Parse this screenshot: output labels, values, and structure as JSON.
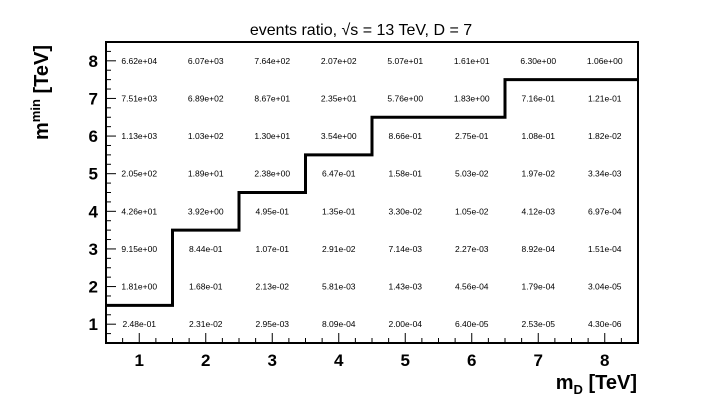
{
  "chart_data": {
    "type": "table",
    "title": "events ratio, √s = 13 TeV, D = 7",
    "xlabel": "m_D [TeV]",
    "ylabel": "m^min [TeV]",
    "xlabel_parts": {
      "base": "m",
      "sub": "D",
      "rest": " [TeV]"
    },
    "ylabel_parts": {
      "base": "m",
      "sup": "min",
      "rest": " [TeV]"
    },
    "x_ticks": [
      "1",
      "2",
      "3",
      "4",
      "5",
      "6",
      "7",
      "8"
    ],
    "y_ticks": [
      "1",
      "2",
      "3",
      "4",
      "5",
      "6",
      "7",
      "8"
    ],
    "xlim": [
      0.5,
      8.5
    ],
    "ylim": [
      0.5,
      8.5
    ],
    "rows": [
      {
        "y": 8,
        "values": [
          "6.62e+04",
          "6.07e+03",
          "7.64e+02",
          "2.07e+02",
          "5.07e+01",
          "1.61e+01",
          "6.30e+00",
          "1.06e+00"
        ]
      },
      {
        "y": 7,
        "values": [
          "7.51e+03",
          "6.89e+02",
          "8.67e+01",
          "2.35e+01",
          "5.76e+00",
          "1.83e+00",
          "7.16e-01",
          "1.21e-01"
        ]
      },
      {
        "y": 6,
        "values": [
          "1.13e+03",
          "1.03e+02",
          "1.30e+01",
          "3.54e+00",
          "8.66e-01",
          "2.75e-01",
          "1.08e-01",
          "1.82e-02"
        ]
      },
      {
        "y": 5,
        "values": [
          "2.05e+02",
          "1.89e+01",
          "2.38e+00",
          "6.47e-01",
          "1.58e-01",
          "5.03e-02",
          "1.97e-02",
          "3.34e-03"
        ]
      },
      {
        "y": 4,
        "values": [
          "4.26e+01",
          "3.92e+00",
          "4.95e-01",
          "1.35e-01",
          "3.30e-02",
          "1.05e-02",
          "4.12e-03",
          "6.97e-04"
        ]
      },
      {
        "y": 3,
        "values": [
          "9.15e+00",
          "8.44e-01",
          "1.07e-01",
          "2.91e-02",
          "7.14e-03",
          "2.27e-03",
          "8.92e-04",
          "1.51e-04"
        ]
      },
      {
        "y": 2,
        "values": [
          "1.81e+00",
          "1.68e-01",
          "2.13e-02",
          "5.81e-03",
          "1.43e-03",
          "4.56e-04",
          "1.79e-04",
          "3.04e-05"
        ]
      },
      {
        "y": 1,
        "values": [
          "2.48e-01",
          "2.31e-02",
          "2.95e-03",
          "8.09e-04",
          "2.00e-04",
          "6.40e-05",
          "2.53e-05",
          "4.30e-06"
        ]
      }
    ],
    "boundary": [
      [
        0.5,
        1.5
      ],
      [
        1.5,
        1.5
      ],
      [
        1.5,
        3.5
      ],
      [
        2.5,
        3.5
      ],
      [
        2.5,
        4.5
      ],
      [
        3.5,
        4.5
      ],
      [
        3.5,
        5.5
      ],
      [
        4.5,
        5.5
      ],
      [
        4.5,
        6.5
      ],
      [
        6.5,
        6.5
      ],
      [
        6.5,
        7.5
      ],
      [
        8.5,
        7.5
      ]
    ],
    "grid": false,
    "colors": {
      "axes": "#000000",
      "text": "#000000",
      "boundary": "#000000"
    }
  }
}
